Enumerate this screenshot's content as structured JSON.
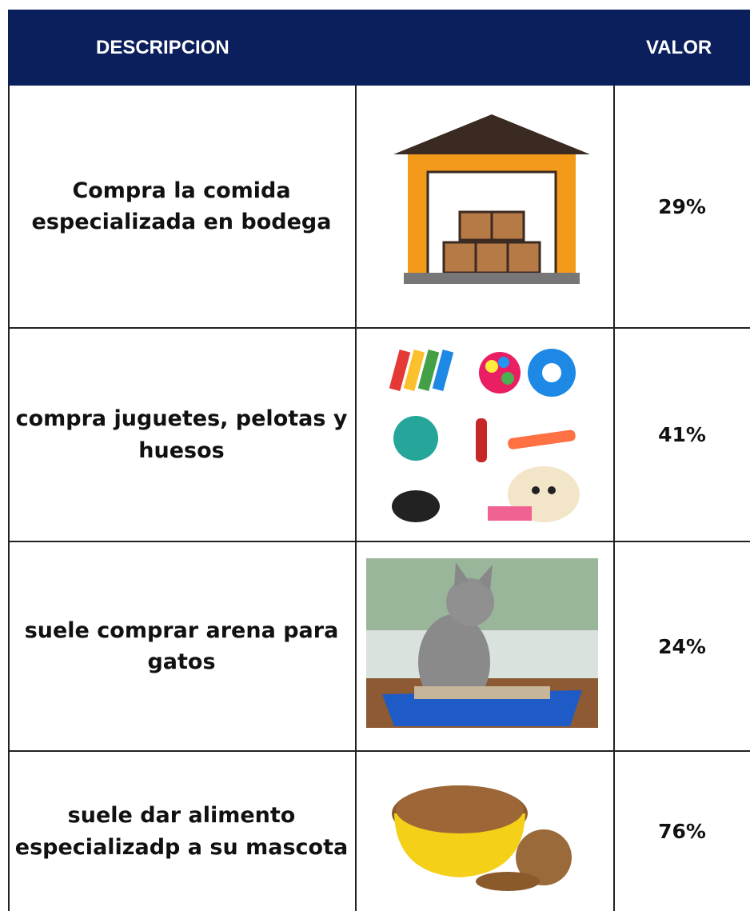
{
  "table": {
    "header": [
      "DESCRIPCION",
      "VALOR"
    ],
    "rows": [
      [
        "Compra la comida especializada en bodega",
        "29%"
      ],
      [
        "compra juguetes, pelotas y huesos",
        "41%"
      ],
      [
        "suele comprar arena para gatos",
        "24%"
      ],
      [
        "suele dar alimento especializadp a su mascota",
        "76%"
      ]
    ]
  }
}
